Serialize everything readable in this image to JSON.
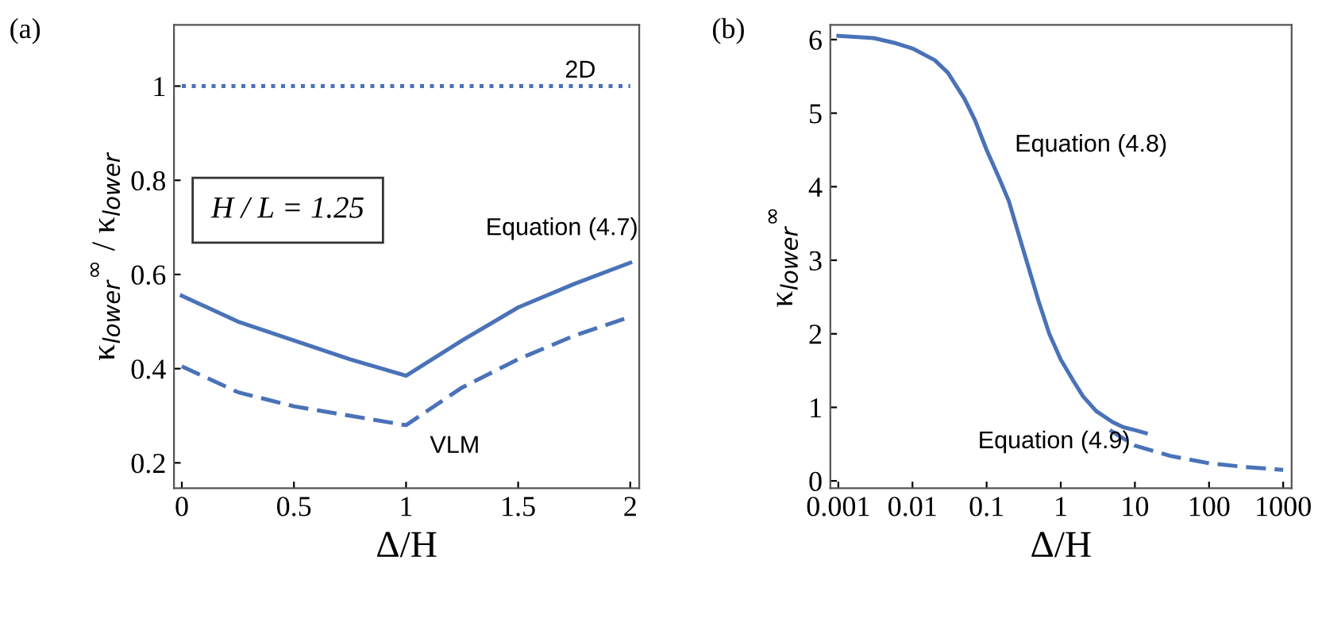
{
  "chart_data": [
    {
      "type": "line",
      "xlabel": "Δ/H",
      "ylabel": "κ$_{lower}$$^{∞}$ / κ$_{lower}$",
      "xlim": [
        -0.035,
        2.04
      ],
      "ylim": [
        0.146,
        1.13
      ],
      "xticks": [
        0,
        0.5,
        1,
        1.5,
        2
      ],
      "yticks": [
        0.2,
        0.4,
        0.6,
        0.8,
        1
      ],
      "grid": false,
      "legend": false,
      "marker": "none",
      "series": [
        {
          "name": "2D",
          "color": "#4a72b8",
          "line_style": "dotted",
          "x": [
            0,
            2
          ],
          "values": [
            1,
            1
          ]
        },
        {
          "name": "Equation (4.7)",
          "color": "#4a72b8",
          "line_style": "solid",
          "x": [
            0,
            0.25,
            0.5,
            0.75,
            1,
            1.25,
            1.5,
            1.75,
            2
          ],
          "values": [
            0.555,
            0.5,
            0.46,
            0.42,
            0.385,
            0.46,
            0.53,
            0.58,
            0.625
          ]
        },
        {
          "name": "VLM",
          "color": "#4a72b8",
          "line_style": "dashed",
          "x": [
            0,
            0.25,
            0.5,
            0.75,
            1,
            1.25,
            1.5,
            1.75,
            2
          ],
          "values": [
            0.405,
            0.35,
            0.32,
            0.3,
            0.28,
            0.36,
            0.42,
            0.47,
            0.51
          ]
        }
      ],
      "annotations": [
        "(a)",
        "H / L = 1.25"
      ]
    },
    {
      "type": "line",
      "xlabel": "Δ/H",
      "ylabel": "κ$_{lower}$$^{∞}$",
      "log": "x",
      "xlim": [
        0.00078,
        1300
      ],
      "ylim": [
        -0.1,
        6.2
      ],
      "xticks": [
        0.001,
        0.01,
        0.1,
        1,
        10,
        100,
        1000
      ],
      "yticks": [
        0,
        1,
        2,
        3,
        4,
        5,
        6
      ],
      "grid": false,
      "legend": false,
      "marker": "none",
      "series": [
        {
          "name": "Equation (4.8)",
          "color": "#4a72b8",
          "line_style": "solid",
          "x": [
            0.001,
            0.003,
            0.006,
            0.01,
            0.02,
            0.03,
            0.05,
            0.07,
            0.1,
            0.15,
            0.2,
            0.3,
            0.5,
            0.7,
            1,
            1.5,
            2,
            3,
            5,
            7,
            10,
            14
          ],
          "values": [
            6.05,
            6.02,
            5.95,
            5.88,
            5.72,
            5.55,
            5.2,
            4.9,
            4.5,
            4.1,
            3.8,
            3.2,
            2.45,
            2.0,
            1.65,
            1.35,
            1.15,
            0.95,
            0.8,
            0.73,
            0.69,
            0.65
          ]
        },
        {
          "name": "Equation (4.9)",
          "color": "#4a72b8",
          "line_style": "dashed",
          "x": [
            4.6,
            10,
            30,
            100,
            300,
            1000
          ],
          "values": [
            0.69,
            0.48,
            0.34,
            0.24,
            0.19,
            0.15
          ]
        }
      ],
      "annotations": [
        "(b)"
      ]
    }
  ]
}
